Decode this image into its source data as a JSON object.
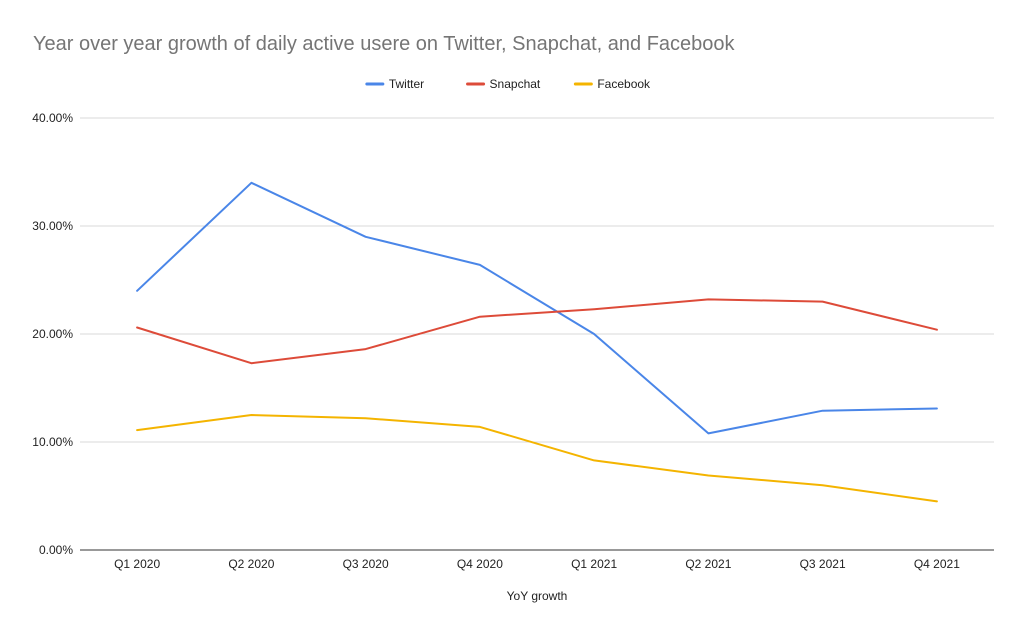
{
  "chart_data": {
    "type": "line",
    "title": "Year over year growth of daily active usere on Twitter, Snapchat, and Facebook",
    "xlabel": "YoY growth",
    "ylabel": "",
    "categories": [
      "Q1 2020",
      "Q2 2020",
      "Q3 2020",
      "Q4 2020",
      "Q1 2021",
      "Q2 2021",
      "Q3 2021",
      "Q4 2021"
    ],
    "ylim": [
      0,
      0.4
    ],
    "yticks": [
      {
        "value": 0.0,
        "label": "0.00%"
      },
      {
        "value": 0.1,
        "label": "10.00%"
      },
      {
        "value": 0.2,
        "label": "20.00%"
      },
      {
        "value": 0.3,
        "label": "30.00%"
      },
      {
        "value": 0.4,
        "label": "40.00%"
      }
    ],
    "grid": true,
    "legend": "top-center",
    "series": [
      {
        "name": "Twitter",
        "color": "#4a86e8",
        "values": [
          0.24,
          0.34,
          0.29,
          0.264,
          0.2,
          0.108,
          0.129,
          0.131
        ]
      },
      {
        "name": "Snapchat",
        "color": "#dd4b39",
        "values": [
          0.206,
          0.173,
          0.186,
          0.216,
          0.223,
          0.232,
          0.23,
          0.204
        ]
      },
      {
        "name": "Facebook",
        "color": "#f4b400",
        "values": [
          0.111,
          0.125,
          0.122,
          0.114,
          0.083,
          0.069,
          0.06,
          0.045
        ]
      }
    ]
  }
}
